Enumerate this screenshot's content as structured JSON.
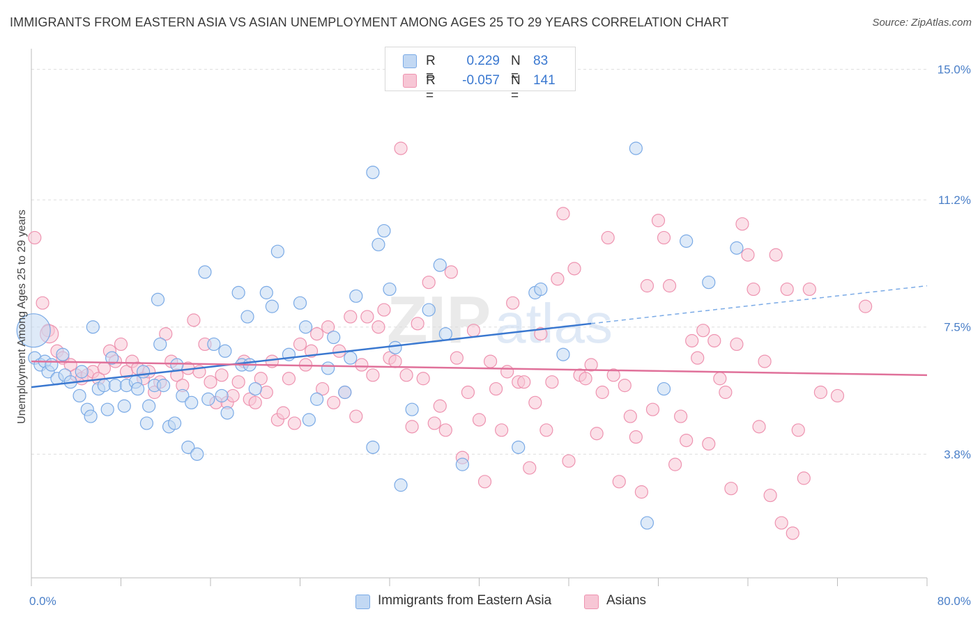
{
  "title": "IMMIGRANTS FROM EASTERN ASIA VS ASIAN UNEMPLOYMENT AMONG AGES 25 TO 29 YEARS CORRELATION CHART",
  "source": "Source: ZipAtlas.com",
  "watermark": {
    "zip": "ZIP",
    "atlas": "atlas"
  },
  "legend": [
    {
      "r_label": "R =",
      "r_value": "0.229",
      "n_label": "N =",
      "n_value": "83"
    },
    {
      "r_label": "R =",
      "r_value": "-0.057",
      "n_label": "N =",
      "n_value": "141"
    }
  ],
  "chart_data": {
    "type": "scatter",
    "title": "IMMIGRANTS FROM EASTERN ASIA VS ASIAN UNEMPLOYMENT AMONG AGES 25 TO 29 YEARS CORRELATION CHART",
    "xlabel": "",
    "ylabel": "Unemployment Among Ages 25 to 29 years",
    "xlim": [
      0,
      80
    ],
    "ylim": [
      0.2,
      15.6
    ],
    "x_tick_labels": [
      "0.0%",
      "80.0%"
    ],
    "y_ticks": [
      3.8,
      7.5,
      11.2,
      15.0
    ],
    "y_tick_labels": [
      "3.8%",
      "7.5%",
      "11.2%",
      "15.0%"
    ],
    "grid": true,
    "legend_position": "top-center",
    "series": [
      {
        "name": "Immigrants from Eastern Asia",
        "color": "#7aaae6",
        "fill": "#c2d8f3",
        "trend": {
          "x": [
            0,
            50
          ],
          "y": [
            5.75,
            7.6
          ],
          "dashed_to": [
            80,
            8.7
          ]
        },
        "points": [
          [
            0.3,
            6.6
          ],
          [
            0.8,
            6.4
          ],
          [
            1.2,
            6.5
          ],
          [
            1.5,
            6.2
          ],
          [
            1.8,
            6.4
          ],
          [
            2.3,
            6.0
          ],
          [
            2.8,
            6.7
          ],
          [
            3.0,
            6.1
          ],
          [
            3.5,
            5.9
          ],
          [
            4.3,
            5.5
          ],
          [
            4.5,
            6.2
          ],
          [
            5.0,
            5.1
          ],
          [
            5.3,
            4.9
          ],
          [
            5.5,
            7.5
          ],
          [
            6.0,
            5.7
          ],
          [
            6.5,
            5.8
          ],
          [
            6.8,
            5.1
          ],
          [
            7.2,
            6.6
          ],
          [
            7.5,
            5.8
          ],
          [
            8.3,
            5.2
          ],
          [
            8.5,
            5.8
          ],
          [
            9.3,
            5.9
          ],
          [
            9.5,
            5.7
          ],
          [
            10.0,
            6.2
          ],
          [
            10.3,
            4.7
          ],
          [
            10.5,
            5.2
          ],
          [
            11.0,
            5.8
          ],
          [
            11.3,
            8.3
          ],
          [
            11.5,
            7.0
          ],
          [
            11.8,
            5.8
          ],
          [
            12.3,
            4.6
          ],
          [
            12.8,
            4.7
          ],
          [
            13.0,
            6.4
          ],
          [
            13.5,
            5.5
          ],
          [
            14.0,
            4.0
          ],
          [
            14.3,
            5.3
          ],
          [
            14.8,
            3.8
          ],
          [
            15.5,
            9.1
          ],
          [
            15.8,
            5.4
          ],
          [
            16.3,
            7.0
          ],
          [
            17.0,
            5.5
          ],
          [
            17.3,
            6.8
          ],
          [
            17.5,
            5.0
          ],
          [
            18.5,
            8.5
          ],
          [
            18.8,
            6.4
          ],
          [
            19.3,
            7.8
          ],
          [
            19.5,
            6.4
          ],
          [
            20.0,
            5.7
          ],
          [
            21.0,
            8.5
          ],
          [
            21.5,
            8.1
          ],
          [
            22.0,
            9.7
          ],
          [
            23.0,
            6.7
          ],
          [
            24.0,
            8.2
          ],
          [
            24.5,
            7.5
          ],
          [
            24.8,
            4.8
          ],
          [
            25.5,
            5.4
          ],
          [
            26.5,
            6.3
          ],
          [
            27.0,
            7.2
          ],
          [
            28.0,
            5.6
          ],
          [
            28.5,
            6.6
          ],
          [
            29.0,
            8.4
          ],
          [
            30.5,
            12.0
          ],
          [
            30.5,
            4.0
          ],
          [
            31.0,
            9.9
          ],
          [
            31.5,
            10.3
          ],
          [
            32.0,
            8.6
          ],
          [
            32.5,
            6.9
          ],
          [
            33.0,
            2.9
          ],
          [
            34.0,
            5.1
          ],
          [
            35.5,
            8.0
          ],
          [
            36.5,
            9.3
          ],
          [
            37.0,
            7.3
          ],
          [
            38.5,
            3.5
          ],
          [
            43.5,
            4.0
          ],
          [
            45.0,
            8.5
          ],
          [
            45.5,
            8.6
          ],
          [
            54.0,
            12.7
          ],
          [
            55.0,
            1.8
          ],
          [
            56.5,
            5.7
          ],
          [
            58.5,
            10.0
          ],
          [
            60.5,
            8.8
          ],
          [
            63.0,
            9.8
          ],
          [
            47.5,
            6.7
          ]
        ]
      },
      {
        "name": "Asians",
        "color": "#ee93b0",
        "fill": "#f7c6d5",
        "trend": {
          "x": [
            0,
            80
          ],
          "y": [
            6.5,
            6.1
          ]
        },
        "points": [
          [
            0.3,
            10.1
          ],
          [
            1.0,
            8.2
          ],
          [
            1.5,
            7.4
          ],
          [
            2.3,
            6.8
          ],
          [
            2.8,
            6.6
          ],
          [
            3.5,
            6.4
          ],
          [
            4.0,
            6.1
          ],
          [
            4.5,
            6.0
          ],
          [
            5.0,
            6.1
          ],
          [
            5.5,
            6.2
          ],
          [
            6.0,
            6.0
          ],
          [
            6.5,
            6.3
          ],
          [
            7.0,
            6.8
          ],
          [
            7.5,
            6.5
          ],
          [
            8.0,
            7.0
          ],
          [
            8.5,
            6.2
          ],
          [
            9.0,
            6.5
          ],
          [
            9.5,
            6.3
          ],
          [
            10.0,
            6.0
          ],
          [
            10.5,
            6.2
          ],
          [
            11.0,
            5.6
          ],
          [
            11.5,
            5.9
          ],
          [
            12.0,
            7.3
          ],
          [
            12.5,
            6.5
          ],
          [
            13.0,
            6.1
          ],
          [
            13.5,
            5.8
          ],
          [
            14.0,
            6.3
          ],
          [
            14.5,
            7.7
          ],
          [
            15.0,
            6.2
          ],
          [
            15.5,
            7.0
          ],
          [
            16.0,
            5.9
          ],
          [
            16.5,
            5.3
          ],
          [
            17.0,
            6.1
          ],
          [
            17.5,
            5.3
          ],
          [
            18.0,
            5.5
          ],
          [
            18.5,
            5.9
          ],
          [
            19.0,
            6.5
          ],
          [
            19.5,
            5.4
          ],
          [
            20.0,
            5.3
          ],
          [
            20.5,
            6.0
          ],
          [
            21.0,
            5.6
          ],
          [
            21.5,
            6.5
          ],
          [
            22.0,
            4.8
          ],
          [
            22.5,
            5.0
          ],
          [
            23.0,
            6.0
          ],
          [
            23.5,
            4.7
          ],
          [
            24.0,
            7.0
          ],
          [
            24.5,
            6.4
          ],
          [
            25.0,
            6.8
          ],
          [
            25.5,
            7.3
          ],
          [
            26.0,
            5.7
          ],
          [
            26.5,
            7.5
          ],
          [
            27.0,
            5.3
          ],
          [
            27.5,
            6.8
          ],
          [
            28.0,
            5.6
          ],
          [
            28.5,
            7.8
          ],
          [
            29.0,
            4.9
          ],
          [
            29.5,
            6.4
          ],
          [
            30.0,
            7.8
          ],
          [
            30.5,
            6.1
          ],
          [
            31.0,
            7.5
          ],
          [
            31.5,
            8.0
          ],
          [
            32.0,
            6.6
          ],
          [
            32.5,
            6.5
          ],
          [
            33.0,
            12.7
          ],
          [
            33.5,
            6.1
          ],
          [
            34.0,
            4.6
          ],
          [
            34.5,
            7.6
          ],
          [
            35.0,
            6.0
          ],
          [
            35.5,
            8.8
          ],
          [
            36.0,
            4.7
          ],
          [
            36.5,
            5.2
          ],
          [
            37.0,
            4.5
          ],
          [
            37.5,
            9.1
          ],
          [
            38.0,
            6.6
          ],
          [
            38.5,
            3.7
          ],
          [
            39.0,
            5.6
          ],
          [
            39.5,
            7.4
          ],
          [
            40.0,
            4.8
          ],
          [
            40.5,
            3.0
          ],
          [
            41.0,
            6.5
          ],
          [
            41.5,
            5.7
          ],
          [
            42.0,
            4.5
          ],
          [
            42.5,
            6.2
          ],
          [
            43.0,
            8.2
          ],
          [
            43.5,
            5.9
          ],
          [
            44.0,
            5.9
          ],
          [
            44.5,
            3.4
          ],
          [
            45.0,
            5.3
          ],
          [
            45.5,
            7.3
          ],
          [
            46.0,
            4.5
          ],
          [
            46.5,
            5.9
          ],
          [
            47.0,
            8.9
          ],
          [
            47.5,
            10.8
          ],
          [
            48.0,
            3.6
          ],
          [
            48.5,
            9.2
          ],
          [
            49.0,
            6.1
          ],
          [
            49.5,
            6.0
          ],
          [
            50.0,
            6.4
          ],
          [
            50.5,
            4.4
          ],
          [
            51.0,
            5.6
          ],
          [
            51.5,
            10.1
          ],
          [
            52.0,
            6.1
          ],
          [
            52.5,
            3.0
          ],
          [
            53.0,
            5.8
          ],
          [
            53.5,
            4.9
          ],
          [
            54.0,
            4.3
          ],
          [
            54.5,
            2.7
          ],
          [
            55.0,
            8.7
          ],
          [
            55.5,
            5.1
          ],
          [
            56.0,
            10.6
          ],
          [
            56.5,
            10.1
          ],
          [
            57.0,
            8.7
          ],
          [
            57.5,
            3.5
          ],
          [
            58.0,
            4.9
          ],
          [
            58.5,
            4.2
          ],
          [
            59.0,
            7.1
          ],
          [
            59.5,
            6.6
          ],
          [
            60.0,
            7.4
          ],
          [
            60.5,
            4.1
          ],
          [
            61.0,
            7.1
          ],
          [
            61.5,
            6.0
          ],
          [
            62.0,
            5.6
          ],
          [
            62.5,
            2.8
          ],
          [
            63.0,
            7.0
          ],
          [
            63.5,
            10.5
          ],
          [
            64.0,
            9.6
          ],
          [
            64.5,
            8.6
          ],
          [
            65.0,
            4.6
          ],
          [
            65.5,
            6.5
          ],
          [
            66.0,
            2.6
          ],
          [
            66.5,
            9.6
          ],
          [
            67.0,
            1.8
          ],
          [
            67.5,
            8.6
          ],
          [
            68.0,
            1.5
          ],
          [
            68.5,
            4.5
          ],
          [
            69.0,
            3.1
          ],
          [
            69.5,
            8.6
          ],
          [
            70.5,
            5.6
          ],
          [
            72.0,
            5.5
          ],
          [
            74.5,
            8.1
          ]
        ]
      }
    ]
  }
}
